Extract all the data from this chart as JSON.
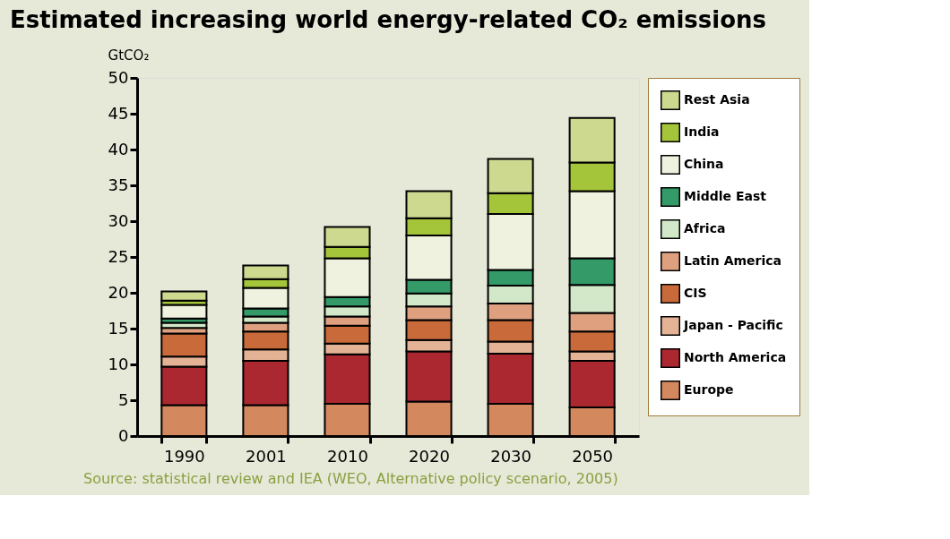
{
  "chart_data": {
    "type": "bar",
    "stacked": true,
    "title": "Estimated increasing world energy-related CO₂ emissions",
    "ylabel": "GtCO₂",
    "categories": [
      "1990",
      "2001",
      "2010",
      "2020",
      "2030",
      "2050"
    ],
    "series": [
      {
        "name": "Europe",
        "color": "#d4885e",
        "values": [
          4.3,
          4.3,
          4.5,
          4.8,
          4.5,
          4.0
        ]
      },
      {
        "name": "North America",
        "color": "#ab2830",
        "values": [
          5.4,
          6.2,
          6.9,
          7.0,
          7.0,
          6.5
        ]
      },
      {
        "name": "Japan - Pacific",
        "color": "#e4b396",
        "values": [
          1.4,
          1.6,
          1.5,
          1.6,
          1.7,
          1.3
        ]
      },
      {
        "name": "CIS",
        "color": "#c96a3a",
        "values": [
          3.2,
          2.5,
          2.5,
          2.8,
          3.0,
          2.8
        ]
      },
      {
        "name": "Latin America",
        "color": "#dea07e",
        "values": [
          0.8,
          1.2,
          1.3,
          1.9,
          2.3,
          2.6
        ]
      },
      {
        "name": "Africa",
        "color": "#d3e8c8",
        "values": [
          0.7,
          0.9,
          1.4,
          1.8,
          2.5,
          3.9
        ]
      },
      {
        "name": "Middle East",
        "color": "#339a68",
        "values": [
          0.6,
          1.1,
          1.3,
          1.9,
          2.2,
          3.7
        ]
      },
      {
        "name": "China",
        "color": "#eef2de",
        "values": [
          1.9,
          2.9,
          5.4,
          6.2,
          7.8,
          9.4
        ]
      },
      {
        "name": "India",
        "color": "#a4c43a",
        "values": [
          0.6,
          1.2,
          1.6,
          2.4,
          2.9,
          4.0
        ]
      },
      {
        "name": "Rest Asia",
        "color": "#ccd98f",
        "values": [
          1.3,
          1.9,
          2.8,
          3.8,
          4.8,
          6.2
        ]
      }
    ],
    "ylim": [
      0,
      50
    ],
    "yticks": [
      0,
      5,
      10,
      15,
      20,
      25,
      30,
      35,
      40,
      45,
      50
    ],
    "grid": false,
    "legend": "right",
    "annotations": [
      "Source: statistical review and IEA (WEO, Alternative policy scenario, 2005)"
    ]
  }
}
